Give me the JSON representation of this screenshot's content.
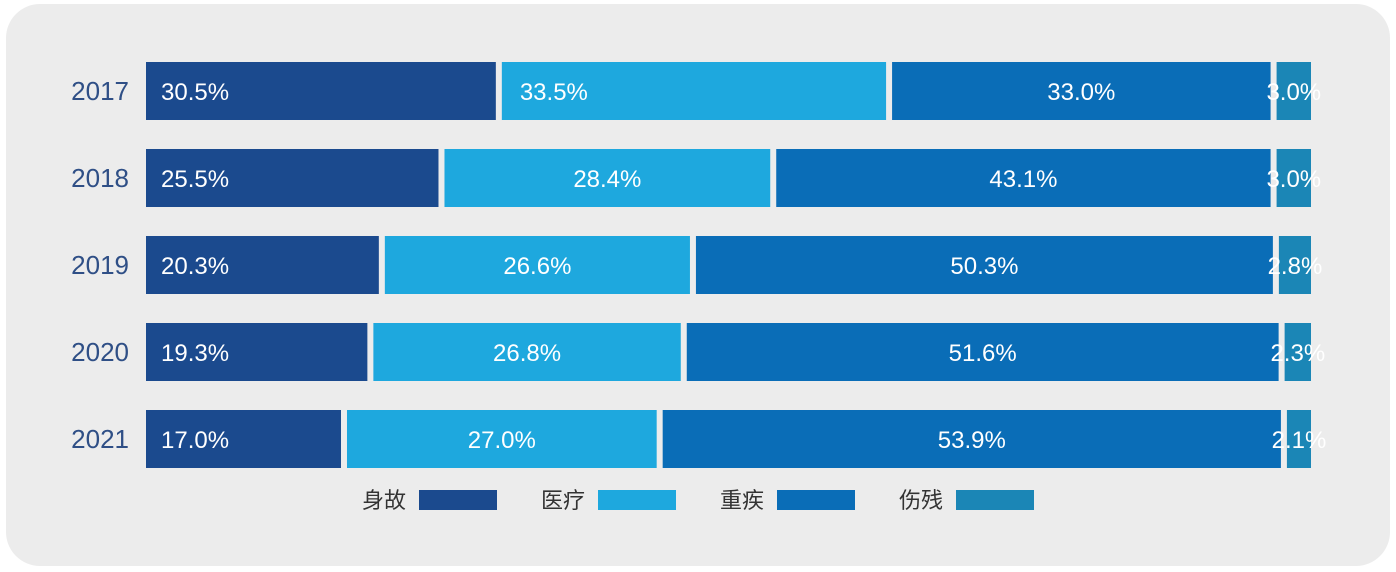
{
  "chart_data": {
    "type": "bar",
    "orientation": "horizontal",
    "stacked": "100%",
    "categories": [
      "2017",
      "2018",
      "2019",
      "2020",
      "2021"
    ],
    "series": [
      {
        "name": "身故",
        "color": "#1b4a8e",
        "values": [
          30.5,
          25.5,
          20.3,
          19.3,
          17.0
        ],
        "labels": [
          "30.5%",
          "25.5%",
          "20.3%",
          "19.3%",
          "17.0%"
        ]
      },
      {
        "name": "医疗",
        "color": "#1ea8de",
        "values": [
          33.5,
          28.4,
          26.6,
          26.8,
          27.0
        ],
        "labels": [
          "33.5%",
          "28.4%",
          "26.6%",
          "26.8%",
          "27.0%"
        ]
      },
      {
        "name": "重疾",
        "color": "#0a6db7",
        "values": [
          33.0,
          43.1,
          50.3,
          51.6,
          53.9
        ],
        "labels": [
          "33.0%",
          "43.1%",
          "50.3%",
          "51.6%",
          "53.9%"
        ]
      },
      {
        "name": "伤残",
        "color": "#1b86b6",
        "values": [
          3.0,
          3.0,
          2.8,
          2.3,
          2.1
        ],
        "labels": [
          "3.0%",
          "3.0%",
          "2.8%",
          "2.3%",
          "2.1%"
        ]
      }
    ],
    "legend_position": "bottom",
    "grid": false
  }
}
